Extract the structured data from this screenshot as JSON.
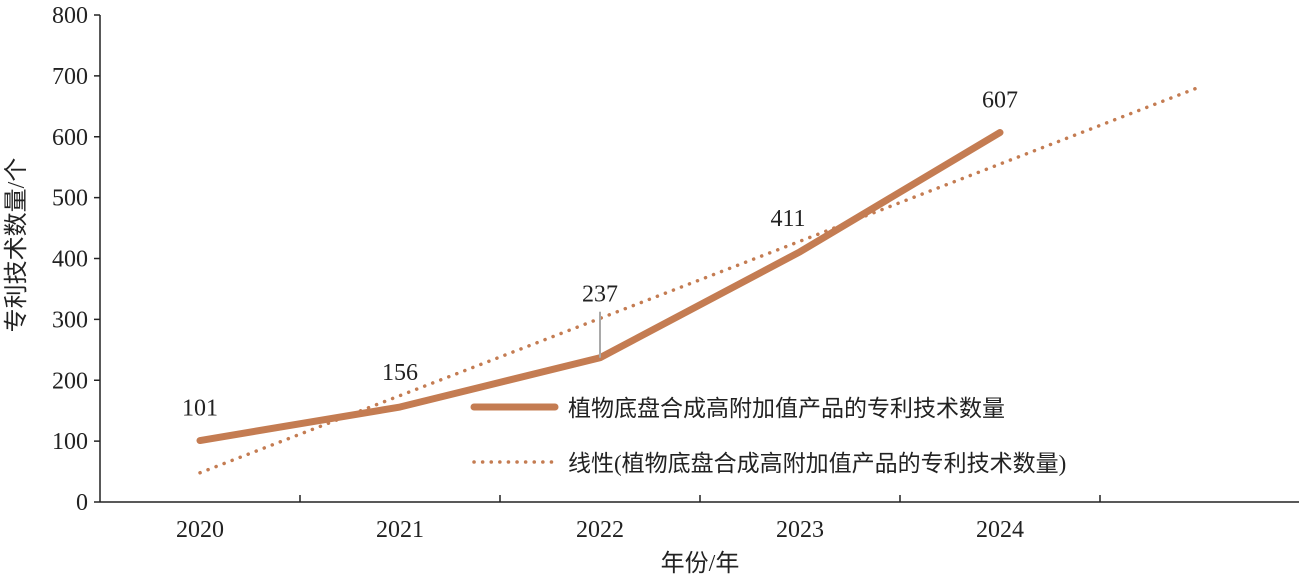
{
  "chart_data": {
    "type": "line",
    "categories": [
      "2020",
      "2021",
      "2022",
      "2023",
      "2024"
    ],
    "xlabel": "年份/年",
    "ylabel": "专利技术数量/个",
    "ylim": [
      0,
      800
    ],
    "yticks": [
      0,
      100,
      200,
      300,
      400,
      500,
      600,
      700,
      800
    ],
    "grid": false,
    "legend_position": "bottom-right",
    "series": [
      {
        "name": "植物底盘合成高附加值产品的专利技术数量",
        "values": [
          101,
          156,
          237,
          411,
          607
        ],
        "data_labels": [
          "101",
          "156",
          "237",
          "411",
          "607"
        ],
        "color": "#c47c52",
        "style": "solid"
      }
    ],
    "trendline": {
      "name": "线性(植物底盘合成高附加值产品的专利技术数量)",
      "kind": "linear",
      "x_range": [
        2020,
        2025
      ],
      "start_value": 48,
      "end_value": 682,
      "color": "#c47c52",
      "style": "dotted"
    }
  }
}
